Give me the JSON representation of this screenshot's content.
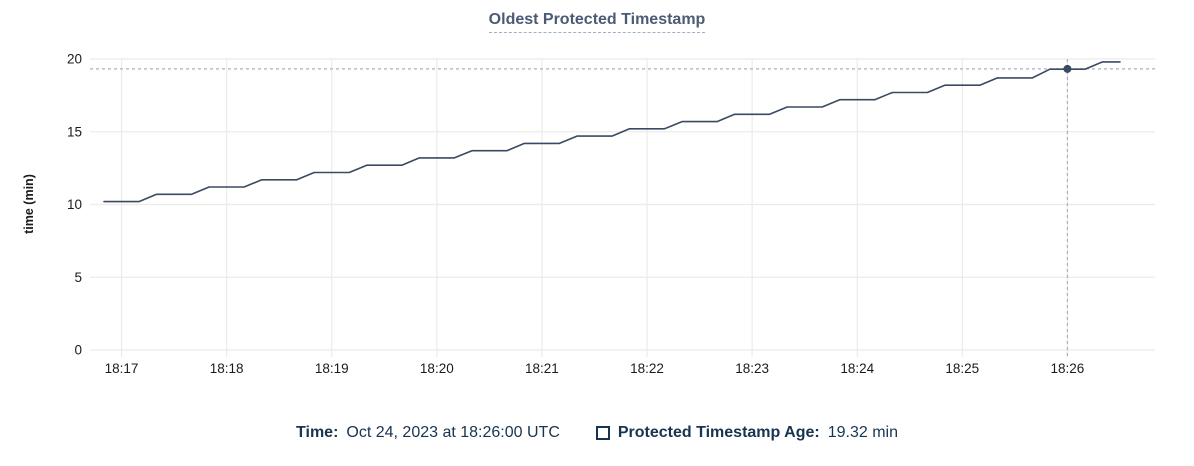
{
  "title": "Oldest Protected Timestamp",
  "y_axis_label": "time (min)",
  "legend": {
    "time_label": "Time:",
    "time_value": "Oct 24, 2023 at 18:26:00 UTC",
    "series_swatch_icon": "square-outline-icon",
    "series_label": "Protected Timestamp Age:",
    "series_value": "19.32 min"
  },
  "colors": {
    "accent_title": "#4c5b75",
    "title_underline": "#9fafc5",
    "series_line": "#3a4a63",
    "grid": "#ebebeb",
    "axis_text": "#1b1b1b",
    "crosshair": "#a5b4c3",
    "legend_text": "#173450"
  },
  "chart_data": {
    "type": "line",
    "title": "Oldest Protected Timestamp",
    "xlabel": "",
    "ylabel": "time (min)",
    "ylim": [
      0,
      20
    ],
    "y_ticks": [
      0,
      5,
      10,
      15,
      20
    ],
    "x_unit": "seconds after 18:00:00 UTC on Oct 24, 2023",
    "xlim_seconds": [
      1002,
      1610
    ],
    "x_ticks": [
      {
        "s": 1020,
        "label": "18:17"
      },
      {
        "s": 1080,
        "label": "18:18"
      },
      {
        "s": 1140,
        "label": "18:19"
      },
      {
        "s": 1200,
        "label": "18:20"
      },
      {
        "s": 1260,
        "label": "18:21"
      },
      {
        "s": 1320,
        "label": "18:22"
      },
      {
        "s": 1380,
        "label": "18:23"
      },
      {
        "s": 1440,
        "label": "18:24"
      },
      {
        "s": 1500,
        "label": "18:25"
      },
      {
        "s": 1560,
        "label": "18:26"
      }
    ],
    "grid": true,
    "legend_position": "bottom",
    "series": [
      {
        "name": "Protected Timestamp Age",
        "x_seconds": [
          1010,
          1020,
          1030,
          1040,
          1050,
          1060,
          1070,
          1080,
          1090,
          1100,
          1110,
          1120,
          1130,
          1140,
          1150,
          1160,
          1170,
          1180,
          1190,
          1200,
          1210,
          1220,
          1230,
          1240,
          1250,
          1260,
          1270,
          1280,
          1290,
          1300,
          1310,
          1320,
          1330,
          1340,
          1350,
          1360,
          1370,
          1380,
          1390,
          1400,
          1410,
          1420,
          1430,
          1440,
          1450,
          1460,
          1470,
          1480,
          1490,
          1500,
          1510,
          1520,
          1530,
          1540,
          1550,
          1560,
          1570,
          1580,
          1590
        ],
        "values": [
          10.2,
          10.2,
          10.2,
          10.7,
          10.7,
          10.7,
          11.2,
          11.2,
          11.2,
          11.7,
          11.7,
          11.7,
          12.2,
          12.2,
          12.2,
          12.7,
          12.7,
          12.7,
          13.2,
          13.2,
          13.2,
          13.7,
          13.7,
          13.7,
          14.2,
          14.2,
          14.2,
          14.7,
          14.7,
          14.7,
          15.2,
          15.2,
          15.2,
          15.7,
          15.7,
          15.7,
          16.2,
          16.2,
          16.2,
          16.7,
          16.7,
          16.7,
          17.2,
          17.2,
          17.2,
          17.7,
          17.7,
          17.7,
          18.2,
          18.2,
          18.2,
          18.7,
          18.7,
          18.7,
          19.3,
          19.3,
          19.3,
          19.8,
          19.8
        ]
      }
    ],
    "crosshair": {
      "x_seconds": 1560,
      "value": 19.32,
      "time_label": "Oct 24, 2023 at 18:26:00 UTC",
      "value_label": "19.32 min"
    }
  }
}
